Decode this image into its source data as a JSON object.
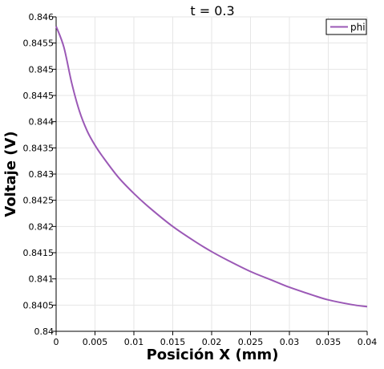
{
  "chart_data": {
    "type": "line",
    "title": "t = 0.3",
    "xlabel": "Posición X (mm)",
    "ylabel": "Voltaje (V)",
    "xlim": [
      0,
      0.04
    ],
    "ylim": [
      0.84,
      0.846
    ],
    "x_ticks": [
      "0",
      "0.005",
      "0.01",
      "0.015",
      "0.02",
      "0.025",
      "0.03",
      "0.035",
      "0.04"
    ],
    "y_ticks": [
      "0.84",
      "0.8405",
      "0.841",
      "0.8415",
      "0.842",
      "0.8425",
      "0.843",
      "0.8435",
      "0.844",
      "0.8445",
      "0.845",
      "0.8455",
      "0.846"
    ],
    "grid": true,
    "legend_position": "top-right",
    "series": [
      {
        "name": "phi",
        "color": "#9b59b6",
        "x": [
          0,
          0.001,
          0.002,
          0.003,
          0.004,
          0.005,
          0.006,
          0.008,
          0.01,
          0.012,
          0.015,
          0.018,
          0.02,
          0.022,
          0.025,
          0.028,
          0.03,
          0.033,
          0.035,
          0.038,
          0.04
        ],
        "y": [
          0.84582,
          0.84542,
          0.84474,
          0.8442,
          0.84382,
          0.84355,
          0.84333,
          0.84294,
          0.84263,
          0.84236,
          0.842,
          0.8417,
          0.84152,
          0.84136,
          0.84114,
          0.84096,
          0.84084,
          0.84069,
          0.8406,
          0.84051,
          0.84047
        ]
      }
    ]
  }
}
